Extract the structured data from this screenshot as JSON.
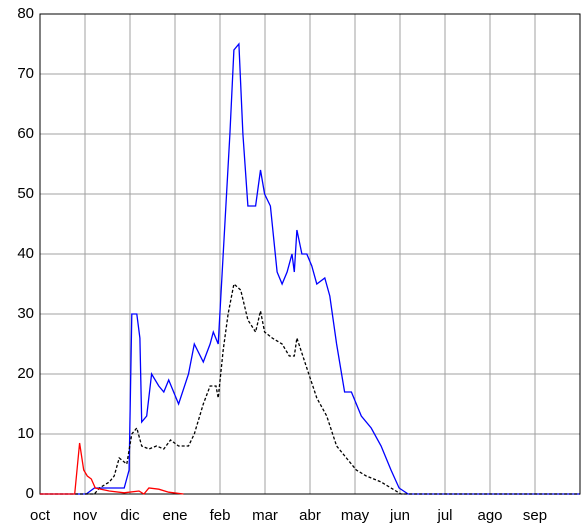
{
  "chart_data": {
    "type": "line",
    "xlim": [
      0,
      12
    ],
    "xticks": [
      {
        "value": 0,
        "label": "oct"
      },
      {
        "value": 1,
        "label": "nov"
      },
      {
        "value": 2,
        "label": "dic"
      },
      {
        "value": 3,
        "label": "ene"
      },
      {
        "value": 4,
        "label": "feb"
      },
      {
        "value": 5,
        "label": "mar"
      },
      {
        "value": 6,
        "label": "abr"
      },
      {
        "value": 7,
        "label": "may"
      },
      {
        "value": 8,
        "label": "jun"
      },
      {
        "value": 9,
        "label": "jul"
      },
      {
        "value": 10,
        "label": "ago"
      },
      {
        "value": 11,
        "label": "sep"
      }
    ],
    "ylim": [
      0,
      80
    ],
    "yticks": [
      0,
      10,
      20,
      30,
      40,
      50,
      60,
      70,
      80
    ],
    "grid": true,
    "series": [
      {
        "color": "#0000ff",
        "dash": false,
        "x": [
          0,
          1.03,
          1.21,
          1.54,
          1.87,
          1.98,
          2.04,
          2.15,
          2.22,
          2.26,
          2.37,
          2.48,
          2.64,
          2.75,
          2.86,
          3.08,
          3.3,
          3.43,
          3.63,
          3.78,
          3.85,
          3.96,
          4.07,
          4.22,
          4.31,
          4.42,
          4.51,
          4.62,
          4.79,
          4.9,
          4.99,
          5.12,
          5.27,
          5.38,
          5.49,
          5.6,
          5.65,
          5.71,
          5.82,
          5.93,
          6.04,
          6.15,
          6.33,
          6.44,
          6.59,
          6.77,
          6.92,
          7.14,
          7.36,
          7.58,
          7.8,
          7.98,
          8.18,
          12
        ],
        "values": [
          0,
          0,
          1,
          1,
          1,
          4,
          30,
          30,
          26,
          12,
          13,
          20,
          18,
          17,
          19,
          15,
          20,
          25,
          22,
          25,
          27,
          25,
          40,
          60,
          74,
          75,
          60,
          48,
          48,
          54,
          50,
          48,
          37,
          35,
          37,
          40,
          37,
          44,
          40,
          40,
          38,
          35,
          36,
          33,
          25,
          17,
          17,
          13,
          11,
          8,
          4,
          1,
          0,
          0
        ]
      },
      {
        "color": "#000000",
        "dash": true,
        "x": [
          0,
          1.21,
          1.32,
          1.54,
          1.65,
          1.76,
          1.93,
          2.04,
          2.15,
          2.26,
          2.42,
          2.59,
          2.75,
          2.9,
          3.08,
          3.3,
          3.43,
          3.63,
          3.78,
          3.91,
          3.96,
          4.07,
          4.18,
          4.31,
          4.46,
          4.62,
          4.79,
          4.9,
          4.99,
          5.16,
          5.38,
          5.54,
          5.65,
          5.71,
          5.93,
          6.15,
          6.37,
          6.59,
          6.81,
          7.03,
          7.25,
          7.58,
          7.8,
          8.02,
          12
        ],
        "values": [
          0,
          0,
          1,
          2,
          3,
          6,
          5,
          10,
          11,
          8,
          7.5,
          8,
          7.5,
          9,
          8,
          8,
          10,
          15,
          18,
          18,
          16,
          24,
          30,
          35,
          34,
          29,
          27,
          30.5,
          27,
          26,
          25,
          23,
          23,
          26,
          21,
          16,
          13,
          8,
          6,
          4,
          3,
          2,
          1,
          0,
          0
        ]
      },
      {
        "color": "#ff0000",
        "dash": false,
        "x": [
          0,
          0.77,
          0.88,
          0.97,
          1.05,
          1.14,
          1.23,
          1.54,
          1.87,
          2.2,
          2.31,
          2.42,
          2.64,
          2.86,
          3.19
        ],
        "values": [
          0,
          0,
          8.5,
          4,
          3,
          2.5,
          1,
          0.5,
          0.2,
          0.5,
          0,
          1,
          0.8,
          0.3,
          0
        ]
      }
    ]
  }
}
